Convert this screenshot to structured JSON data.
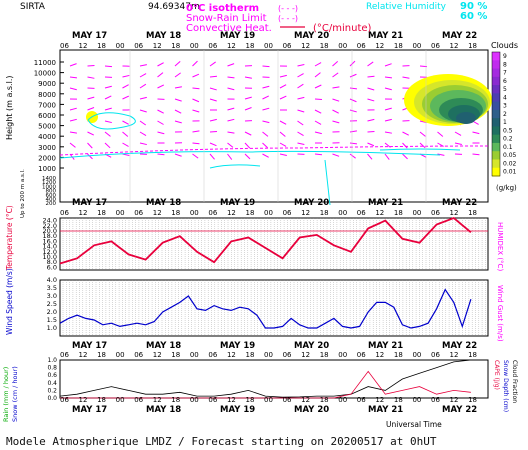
{
  "header": {
    "station": "SIRTA",
    "coords": "94.69347m",
    "legend_isotherm": "0°C isotherm",
    "legend_snowrain": "Snow-Rain Limit",
    "legend_convective": "Convective Heat.",
    "legend_convective_unit": "(°C/minute)",
    "legend_rh": "Relative Humidity",
    "legend_rh_90": "90 %",
    "legend_rh_60": "60 %",
    "legend_iso_dash": "(- - -)",
    "legend_snow_dash": "(- - -)"
  },
  "colors": {
    "magenta": "#ff00ff",
    "cyan": "#00e5ee",
    "red": "#e8003c",
    "blue": "#0000cc",
    "grid": "#9a9a9a"
  },
  "time_axis": {
    "days": [
      "MAY 17",
      "MAY 18",
      "MAY 19",
      "MAY 20",
      "MAY 21",
      "MAY 22"
    ],
    "hours": [
      "06",
      "12",
      "18",
      "00",
      "06",
      "12",
      "18",
      "00",
      "06",
      "12",
      "18",
      "00",
      "06",
      "12",
      "18",
      "00",
      "06",
      "12",
      "18",
      "00",
      "06",
      "12",
      "18"
    ],
    "xlabel": "Universal Time"
  },
  "footer": "Modele Atmospherique LMDZ / Forecast starting on 20200517 at 0hUT",
  "chart_data": [
    {
      "type": "heatmap",
      "name": "clouds-height",
      "ylabel": "Height (m a.s.l.)",
      "ylabel2": "Up to 200 m a.s.l.",
      "y_ticks_upper": [
        "11000",
        "10000",
        "9000",
        "8000",
        "7000",
        "6000",
        "5000",
        "4000",
        "3000",
        "2000",
        "1000"
      ],
      "y_ticks_lower": [
        "1400",
        "1200",
        "1000",
        "800",
        "600",
        "400",
        "200"
      ],
      "cloud_scale_title": "Clouds",
      "cloud_scale_unit": "(g/kg)",
      "cloud_scale": [
        "0.01",
        "0.02",
        "0.05",
        "0.1",
        "0.2",
        "0.5",
        "1",
        "2",
        "3",
        "4",
        "5",
        "6",
        "7",
        "8",
        "9"
      ],
      "cloud_colors": [
        "#ffff00",
        "#d6e62a",
        "#9acd32",
        "#5cb85c",
        "#2e8b57",
        "#1e7060",
        "#206070",
        "#2d5f8a",
        "#3a4fa0",
        "#4c3fb0",
        "#6a2fc0",
        "#8a2ad0",
        "#a52ae0",
        "#c02aee",
        "#dd33ff"
      ]
    },
    {
      "type": "line",
      "name": "temperature",
      "ylabel": "Temperature (°C)",
      "ylabel_right": "HUMIDEX (°C)",
      "y_ticks": [
        "24.0",
        "22.0",
        "20.0",
        "18.0",
        "16.0",
        "14.0",
        "12.0",
        "10.0",
        "8.0",
        "6.0"
      ],
      "ylim": [
        5,
        25
      ],
      "x_hours": [
        0,
        6,
        12,
        18,
        24,
        30,
        36,
        42,
        48,
        54,
        60,
        66,
        72,
        78,
        84,
        90,
        96,
        102,
        108,
        114,
        120,
        126,
        132,
        138,
        144
      ],
      "values": [
        7.5,
        9.5,
        14.5,
        16.0,
        11.0,
        9.0,
        15.5,
        18.0,
        12.0,
        8.0,
        16.0,
        17.5,
        13.5,
        9.5,
        17.5,
        18.5,
        14.5,
        12.0,
        21.0,
        24.0,
        17.0,
        15.5,
        22.5,
        25.0,
        19.5
      ]
    },
    {
      "type": "line",
      "name": "wind-speed",
      "ylabel": "Wind Speed (m/s)",
      "ylabel_right": "Wind Gust (m/s)",
      "y_ticks": [
        "4.0",
        "3.5",
        "3.0",
        "2.5",
        "2.0",
        "1.5",
        "1.0"
      ],
      "ylim": [
        0.5,
        4.0
      ],
      "x_hours": [
        0,
        3,
        6,
        9,
        12,
        15,
        18,
        21,
        24,
        27,
        30,
        33,
        36,
        39,
        42,
        45,
        48,
        51,
        54,
        57,
        60,
        63,
        66,
        69,
        72,
        75,
        78,
        81,
        84,
        87,
        90,
        93,
        96,
        99,
        102,
        105,
        108,
        111,
        114,
        117,
        120,
        123,
        126,
        129,
        132,
        135,
        138,
        141,
        144
      ],
      "values": [
        1.3,
        1.6,
        1.8,
        1.6,
        1.5,
        1.2,
        1.3,
        1.1,
        1.2,
        1.3,
        1.2,
        1.4,
        2.0,
        2.3,
        2.6,
        3.0,
        2.2,
        2.1,
        2.4,
        2.2,
        2.1,
        2.3,
        2.2,
        1.8,
        1.0,
        1.0,
        1.1,
        1.6,
        1.2,
        1.0,
        1.0,
        1.3,
        1.6,
        1.1,
        1.0,
        1.1,
        2.0,
        2.6,
        2.6,
        2.3,
        1.2,
        1.0,
        1.1,
        1.3,
        2.2,
        3.4,
        2.6,
        1.1,
        2.8
      ]
    },
    {
      "type": "line",
      "name": "precip-snow-cape",
      "ylabel": "Rain (mm / hour)",
      "ylabel2": "Snow (cm / hour)",
      "ylabel_right": "CAPE (J/g)",
      "ylabel_right2": "Snow Depth (cm)",
      "ylabel_right3": "Cloud Fraction",
      "y_ticks": [
        "1.0",
        "0.8",
        "0.6",
        "0.4",
        "0.2",
        "0.0"
      ],
      "ylim": [
        0,
        1.0
      ],
      "x_hours": [
        0,
        6,
        12,
        18,
        24,
        30,
        36,
        42,
        48,
        54,
        60,
        66,
        72,
        78,
        84,
        90,
        96,
        102,
        108,
        114,
        120,
        126,
        132,
        138,
        144
      ],
      "rain": [
        0.05,
        0.1,
        0.2,
        0.3,
        0.2,
        0.1,
        0.1,
        0.15,
        0.05,
        0.05,
        0.1,
        0.2,
        0.05,
        0.02,
        0.03,
        0.05,
        0.05,
        0.1,
        0.3,
        0.2,
        0.5,
        0.65,
        0.8,
        0.95,
        1.0
      ],
      "cape": [
        0,
        0,
        0,
        0,
        0,
        0,
        0,
        0,
        0,
        0,
        0,
        0,
        0,
        0,
        0,
        0,
        0,
        0.1,
        0.7,
        0.1,
        0.2,
        0.3,
        0.1,
        0.2,
        0.15
      ]
    }
  ]
}
